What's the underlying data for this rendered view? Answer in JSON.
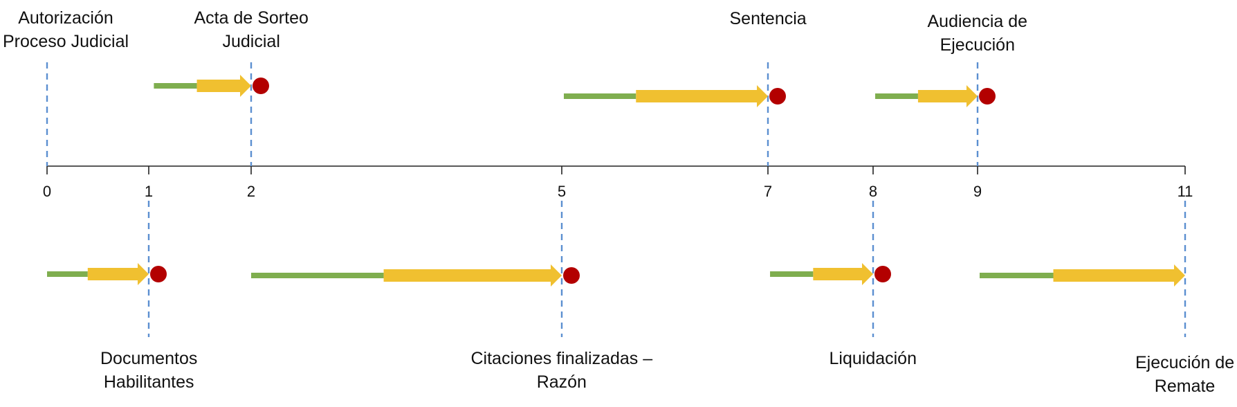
{
  "colors": {
    "axis": "#222222",
    "dashed": "#5b8fd0",
    "green": "#7fae4f",
    "arrow": "#f0c030",
    "marker": "#b30000",
    "text": "#111111"
  },
  "axis": {
    "ticks": [
      0,
      1,
      2,
      5,
      7,
      8,
      9,
      11
    ]
  },
  "milestones": [
    {
      "id": "autorizacion",
      "side": "top",
      "position": 0,
      "lines": [
        "Autorización",
        "Proceso Judicial"
      ],
      "bar": null
    },
    {
      "id": "acta-sorteo",
      "side": "top",
      "position": 2,
      "lines": [
        "Acta de Sorteo",
        "Judicial"
      ],
      "bar": {
        "green_from": 1.05,
        "arrow_from": 1.47
      }
    },
    {
      "id": "sentencia",
      "side": "top",
      "position": 7,
      "lines": [
        "Sentencia"
      ],
      "bar": {
        "green_from": 5.02,
        "arrow_from": 5.72
      }
    },
    {
      "id": "audiencia-ejecucion",
      "side": "top",
      "position": 9,
      "lines": [
        "Audiencia de",
        "Ejecución"
      ],
      "bar": {
        "green_from": 8.02,
        "arrow_from": 8.43
      }
    },
    {
      "id": "documentos-habilitantes",
      "side": "bottom",
      "position": 1,
      "lines": [
        "Documentos",
        "Habilitantes"
      ],
      "bar": {
        "green_from": 0.0,
        "arrow_from": 0.4
      }
    },
    {
      "id": "citaciones-finalizadas",
      "side": "bottom",
      "position": 5,
      "lines": [
        "Citaciones finalizadas –",
        "Razón"
      ],
      "bar": {
        "green_from": 2.0,
        "arrow_from": 3.28
      }
    },
    {
      "id": "liquidacion",
      "side": "bottom",
      "position": 8,
      "lines": [
        "Liquidación"
      ],
      "bar": {
        "green_from": 7.02,
        "arrow_from": 7.43
      }
    },
    {
      "id": "ejecucion-remate",
      "side": "bottom",
      "position": 11,
      "lines": [
        "Ejecución de",
        "Remate"
      ],
      "bar": {
        "green_from": 9.02,
        "arrow_from": 9.73
      },
      "no_marker": true
    }
  ]
}
